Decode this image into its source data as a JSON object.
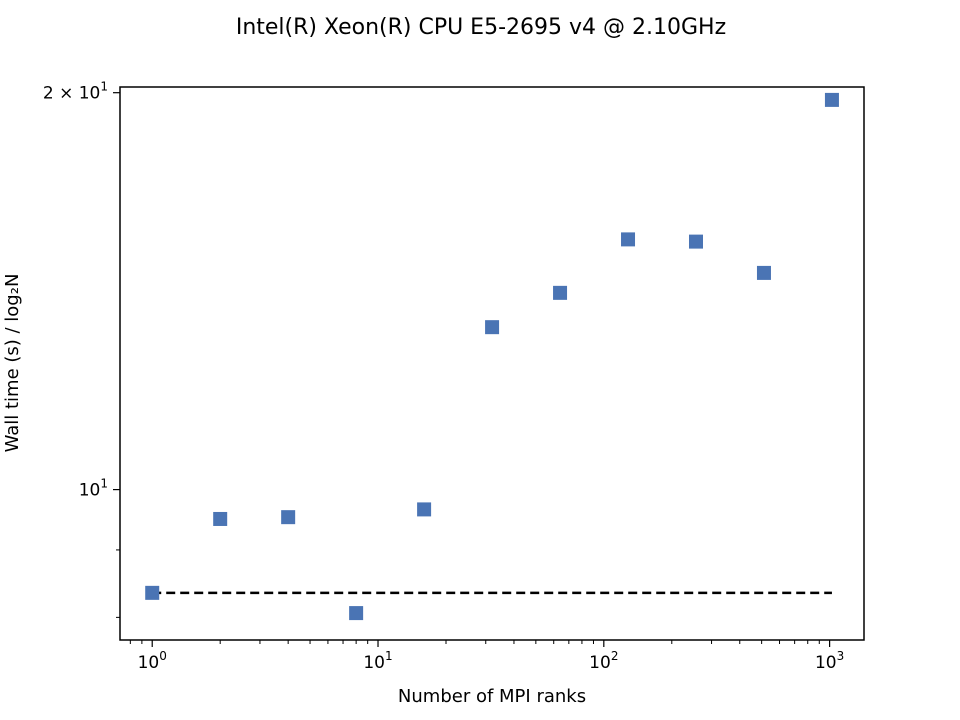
{
  "chart_data": {
    "type": "scatter",
    "title": "Intel(R) Xeon(R) CPU E5-2695 v4 @ 2.10GHz",
    "xlabel": "Number of MPI ranks",
    "ylabel": "Wall time (s) / log₂N",
    "xscale": "log",
    "yscale": "log",
    "xlim": [
      0.72,
      1420
    ],
    "ylim": [
      7.69,
      20.2
    ],
    "grid": false,
    "xticks": [
      {
        "value": 1,
        "base": "10",
        "exp": "0"
      },
      {
        "value": 10,
        "base": "10",
        "exp": "1"
      },
      {
        "value": 100,
        "base": "10",
        "exp": "2"
      },
      {
        "value": 1000,
        "base": "10",
        "exp": "3"
      }
    ],
    "yticks": [
      {
        "value": 10,
        "prefix": "",
        "base": "10",
        "exp": "1"
      },
      {
        "value": 20,
        "prefix": "2 × ",
        "base": "10",
        "exp": "1"
      }
    ],
    "series": [
      {
        "marker": "square",
        "color": "#4a74b4",
        "x": [
          1,
          2,
          4,
          8,
          16,
          32,
          64,
          128,
          256,
          512,
          1024
        ],
        "y": [
          8.35,
          9.5,
          9.53,
          8.06,
          9.66,
          13.28,
          14.1,
          15.48,
          15.42,
          14.6,
          19.75
        ]
      }
    ],
    "reference_line": {
      "style": "dashed",
      "color": "#000000",
      "x": [
        1,
        1024
      ],
      "y": [
        8.35,
        8.35
      ]
    }
  }
}
